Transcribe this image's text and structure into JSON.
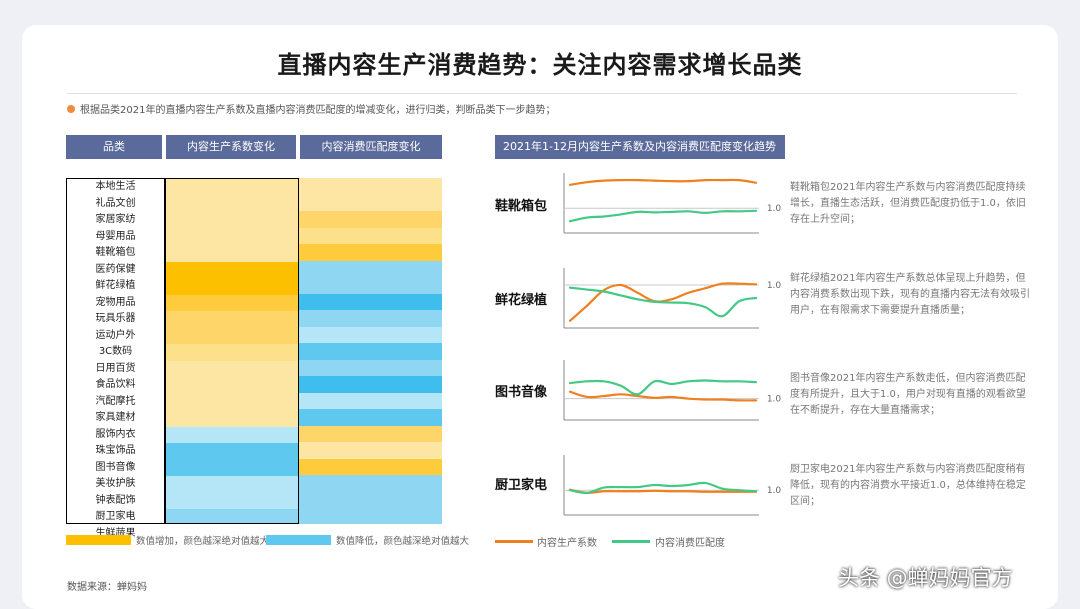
{
  "title": "直播内容生产消费趋势：关注内容需求增长品类",
  "note": "根据品类2021年的直播内容生产系数及直播内容消费匹配度的增减变化，进行归类，判断品类下一步趋势；",
  "table_headers": [
    "品类",
    "内容生产系数变化",
    "内容消费匹配度变化"
  ],
  "categories": [
    "本地生活",
    "礼品文创",
    "家居家纺",
    "母婴用品",
    "鞋靴箱包",
    "医药保健",
    "鲜花绿植",
    "宠物用品",
    "玩具乐器",
    "运动户外",
    "3C数码",
    "日用百货",
    "食品饮料",
    "汽配摩托",
    "家具建材",
    "服饰内衣",
    "珠宝饰品",
    "图书音像",
    "美妆护肤",
    "钟表配饰",
    "厨卫家电",
    "生鲜蔬果"
  ],
  "heat": {
    "production": [
      "#fde6a4",
      "#fde6a4",
      "#fde6a4",
      "#fde6a4",
      "#fde6a4",
      "#fdc000",
      "#fdc000",
      "#fdcb3c",
      "#fdd568",
      "#fdd568",
      "#fde08a",
      "#fde6a4",
      "#fde6a4",
      "#fde6a4",
      "#fde6a4",
      "#b4e6f7",
      "#5ec8ef",
      "#5ec8ef",
      "#b4e6f7",
      "#b4e6f7",
      "#8ed6f2",
      "#5ec8ef"
    ],
    "consumption": [
      "#fde6a4",
      "#fde6a4",
      "#fdd568",
      "#fde08a",
      "#fdcb3c",
      "#8ed6f2",
      "#8ed6f2",
      "#3fbdec",
      "#8ed6f2",
      "#b4e6f7",
      "#5ec8ef",
      "#8ed6f2",
      "#3fbdec",
      "#b4e6f7",
      "#5ec8ef",
      "#fdd568",
      "#fde6a4",
      "#fdcb3c",
      "#8ed6f2",
      "#8ed6f2",
      "#8ed6f2",
      "#8ed6f2"
    ]
  },
  "legend": {
    "increase": "数值增加，颜色越深绝对值越大",
    "decrease": "数值降低，颜色越深绝对值越大",
    "increase_color": "#fdc000",
    "decrease_color": "#5ec8ef"
  },
  "source": "数据来源：蝉妈妈",
  "trend_header": "2021年1-12月内容生产系数及内容消费匹配度变化趋势",
  "series_legend": {
    "production": "内容生产系数",
    "consumption": "内容消费匹配度",
    "production_color": "#f07f1e",
    "consumption_color": "#43c986"
  },
  "chart_data": [
    {
      "type": "line",
      "title": "鞋靴箱包",
      "x": [
        1,
        2,
        3,
        4,
        5,
        6,
        7,
        8,
        9,
        10,
        11,
        12
      ],
      "ref_label": "1.0",
      "ref": 1.0,
      "ylim": [
        0.6,
        1.6
      ],
      "series": [
        {
          "name": "内容生产系数",
          "values": [
            1.45,
            1.5,
            1.53,
            1.54,
            1.54,
            1.53,
            1.52,
            1.52,
            1.54,
            1.54,
            1.54,
            1.49
          ]
        },
        {
          "name": "内容消费匹配度",
          "values": [
            0.75,
            0.82,
            0.84,
            0.88,
            0.93,
            0.92,
            0.93,
            0.94,
            0.91,
            0.94,
            0.94,
            0.95
          ]
        }
      ]
    },
    {
      "type": "line",
      "title": "鲜花绿植",
      "x": [
        1,
        2,
        3,
        4,
        5,
        6,
        7,
        8,
        9,
        10,
        11,
        12
      ],
      "ref_label": "1.0",
      "ref": 1.0,
      "ylim": [
        0.4,
        1.2
      ],
      "series": [
        {
          "name": "内容生产系数",
          "values": [
            0.45,
            0.68,
            0.92,
            1.0,
            0.88,
            0.75,
            0.78,
            0.88,
            0.95,
            1.02,
            1.02,
            1.01
          ]
        },
        {
          "name": "内容消费匹配度",
          "values": [
            0.96,
            0.93,
            0.9,
            0.84,
            0.78,
            0.74,
            0.73,
            0.72,
            0.66,
            0.52,
            0.75,
            0.8
          ]
        }
      ]
    },
    {
      "type": "line",
      "title": "图书音像",
      "x": [
        1,
        2,
        3,
        4,
        5,
        6,
        7,
        8,
        9,
        10,
        11,
        12
      ],
      "ref_label": "1.0",
      "ref": 1.0,
      "ylim": [
        0.8,
        1.4
      ],
      "series": [
        {
          "name": "内容生产系数",
          "values": [
            1.08,
            1.02,
            1.03,
            1.05,
            1.03,
            1.01,
            1.02,
            1.0,
            0.99,
            0.99,
            0.98,
            0.98
          ]
        },
        {
          "name": "内容消费匹配度",
          "values": [
            1.18,
            1.2,
            1.2,
            1.15,
            1.05,
            1.2,
            1.17,
            1.2,
            1.21,
            1.2,
            1.2,
            1.19
          ]
        }
      ]
    },
    {
      "type": "line",
      "title": "厨卫家电",
      "x": [
        1,
        2,
        3,
        4,
        5,
        6,
        7,
        8,
        9,
        10,
        11,
        12
      ],
      "ref_label": "1.0",
      "ref": 1.0,
      "ylim": [
        0.6,
        1.6
      ],
      "series": [
        {
          "name": "内容生产系数",
          "values": [
            1.01,
            0.95,
            0.98,
            0.98,
            0.98,
            0.99,
            0.98,
            0.98,
            0.97,
            0.97,
            0.97,
            0.97
          ]
        },
        {
          "name": "内容消费匹配度",
          "values": [
            1.0,
            0.95,
            1.05,
            1.06,
            1.06,
            1.1,
            1.08,
            1.1,
            1.14,
            1.03,
            1.0,
            0.98
          ]
        }
      ]
    }
  ],
  "descriptions": [
    "鞋靴箱包2021年内容生产系数与内容消费匹配度持续增长，直播生态活跃，但消费匹配度扔低于1.0，依旧存在上升空间；",
    "鲜花绿植2021年内容生产系数总体呈现上升趋势，但内容消费系数出现下跌，现有的直播内容无法有效吸引用户，在有限需求下需要提升直播质量；",
    "图书音像2021年内容生产系数走低，但内容消费匹配度有所提升，且大于1.0，用户对现有直播的观看欲望在不断提升，存在大量直播需求；",
    "厨卫家电2021年内容生产系数与内容消费匹配度稍有降低，现有的内容消费水平接近1.0，总体维持在稳定区间；"
  ],
  "watermark": "头条 @蝉妈妈官方"
}
